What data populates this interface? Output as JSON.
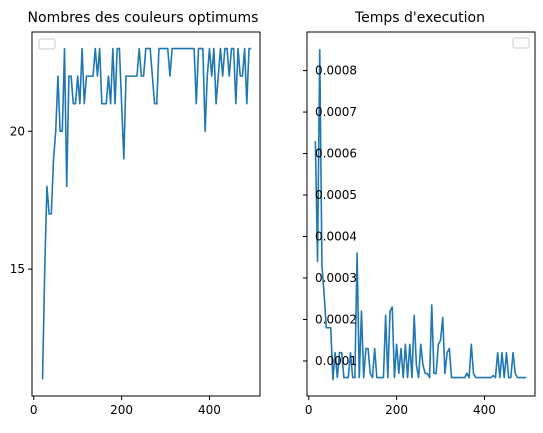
{
  "colors": {
    "series": "#1f77b4",
    "axes": "#000000",
    "legend_border": "#cccccc"
  },
  "chart_data": [
    {
      "type": "line",
      "title": "Nombres des couleurs optimums",
      "xlabel": "",
      "ylabel": "",
      "xlim": [
        -4,
        515
      ],
      "ylim": [
        10.4,
        23.6
      ],
      "xticks": [
        0,
        200,
        400
      ],
      "xtick_labels": [
        "0",
        "200",
        "400"
      ],
      "yticks": [
        15,
        20
      ],
      "ytick_labels": [
        "15",
        "20"
      ],
      "legend": "top-left (empty)",
      "grid": false,
      "series": [
        {
          "x": [
            20,
            25,
            30,
            35,
            40,
            45,
            50,
            55,
            60,
            65,
            70,
            75,
            80,
            85,
            90,
            95,
            100,
            105,
            110,
            115,
            120,
            125,
            130,
            135,
            140,
            145,
            150,
            155,
            160,
            165,
            170,
            175,
            180,
            185,
            190,
            195,
            200,
            205,
            210,
            215,
            220,
            225,
            230,
            235,
            240,
            245,
            250,
            255,
            260,
            265,
            270,
            275,
            280,
            285,
            290,
            295,
            300,
            305,
            310,
            315,
            320,
            325,
            330,
            335,
            340,
            345,
            350,
            355,
            360,
            365,
            370,
            375,
            380,
            385,
            390,
            395,
            400,
            405,
            410,
            415,
            420,
            425,
            430,
            435,
            440,
            445,
            450,
            455,
            460,
            465,
            470,
            475,
            480,
            485,
            490,
            495
          ],
          "y": [
            11,
            15,
            18,
            17,
            17,
            19,
            20,
            22,
            20,
            20,
            23,
            18,
            22,
            22,
            21,
            21,
            22,
            21,
            23,
            21,
            22,
            22,
            22,
            22,
            23,
            22,
            23,
            21,
            21,
            21,
            22,
            21,
            23,
            21,
            23,
            23,
            21,
            19,
            22,
            22,
            22,
            22,
            22,
            22,
            23,
            22,
            22,
            23,
            23,
            23,
            22,
            21,
            21,
            23,
            23,
            23,
            23,
            23,
            22,
            23,
            23,
            23,
            23,
            23,
            23,
            23,
            23,
            23,
            23,
            23,
            21,
            23,
            23,
            23,
            20,
            22,
            23,
            22,
            23,
            21,
            22,
            23,
            22,
            23,
            23,
            22,
            23,
            23,
            21,
            23,
            22,
            22,
            23,
            21,
            23,
            23
          ]
        }
      ]
    },
    {
      "type": "line",
      "title": "Temps d'execution",
      "xlabel": "",
      "ylabel": "",
      "xlim": [
        -4,
        515
      ],
      "ylim": [
        1.55e-05,
        0.000893
      ],
      "xticks": [
        0,
        200,
        400
      ],
      "xtick_labels": [
        "0",
        "200",
        "400"
      ],
      "yticks": [
        0.0001,
        0.0002,
        0.0003,
        0.0004,
        0.0005,
        0.0006,
        0.0007,
        0.0008
      ],
      "ytick_labels": [
        "0.0001",
        "0.0002",
        "0.0003",
        "0.0004",
        "0.0005",
        "0.0006",
        "0.0007",
        "0.0008"
      ],
      "legend": "top-right (empty)",
      "grid": false,
      "series": [
        {
          "x": [
            15,
            20,
            25,
            30,
            35,
            40,
            45,
            50,
            55,
            60,
            65,
            70,
            75,
            80,
            85,
            90,
            95,
            100,
            105,
            110,
            115,
            120,
            125,
            130,
            135,
            140,
            145,
            150,
            155,
            160,
            165,
            170,
            175,
            180,
            185,
            190,
            195,
            200,
            205,
            210,
            215,
            220,
            225,
            230,
            235,
            240,
            245,
            250,
            255,
            260,
            265,
            270,
            275,
            280,
            285,
            290,
            295,
            300,
            305,
            310,
            315,
            320,
            325,
            330,
            335,
            340,
            345,
            350,
            355,
            360,
            365,
            370,
            375,
            380,
            385,
            390,
            395,
            400,
            405,
            410,
            415,
            420,
            425,
            430,
            435,
            440,
            445,
            450,
            455,
            460,
            465,
            470,
            475,
            480,
            485,
            490,
            495
          ],
          "y": [
            0.00063,
            0.00034,
            0.00085,
            0.00033,
            0.00026,
            0.00018,
            0.00018,
            0.00018,
            5.5e-05,
            0.00012,
            6e-05,
            0.00012,
            0.00012,
            6e-05,
            6e-05,
            6e-05,
            0.00012,
            6e-05,
            6e-05,
            0.00036,
            6e-05,
            0.00022,
            6e-05,
            0.00013,
            0.00013,
            7e-05,
            6e-05,
            0.00013,
            6e-05,
            6e-05,
            6e-05,
            6e-05,
            0.00021,
            6e-05,
            0.00022,
            0.00023,
            6e-05,
            0.00014,
            7e-05,
            0.00013,
            6e-05,
            0.00014,
            6e-05,
            0.00014,
            6e-05,
            0.00021,
            9e-05,
            6e-05,
            0.00014,
            9e-05,
            7e-05,
            7e-05,
            6e-05,
            0.000235,
            7e-05,
            7e-05,
            0.00014,
            0.00015,
            0.000205,
            7e-05,
            0.00012,
            0.00013,
            6e-05,
            6e-05,
            6e-05,
            6e-05,
            6e-05,
            6e-05,
            6e-05,
            7e-05,
            6e-05,
            0.00014,
            7e-05,
            6e-05,
            6e-05,
            6e-05,
            6e-05,
            6e-05,
            6e-05,
            6e-05,
            6e-05,
            6.5e-05,
            6e-05,
            0.00012,
            6e-05,
            0.00012,
            6e-05,
            0.00012,
            6e-05,
            6e-05,
            0.00012,
            7e-05,
            6e-05,
            6e-05,
            6e-05,
            6e-05,
            6e-05
          ]
        }
      ]
    }
  ]
}
